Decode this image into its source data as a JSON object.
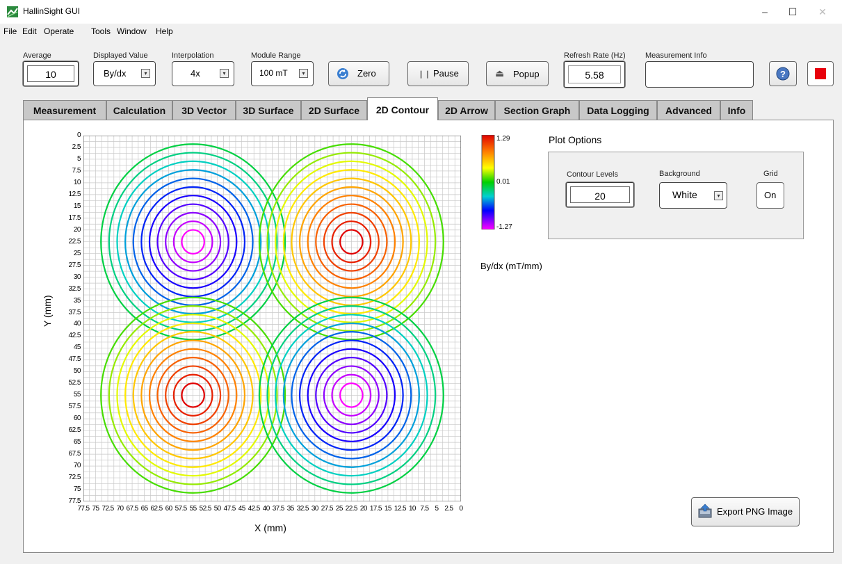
{
  "window": {
    "title": "HallinSight GUI",
    "minimize": "–",
    "maximize": "☐",
    "close": "✕"
  },
  "menu": [
    "File",
    "Edit",
    "Operate",
    "Tools",
    "Window",
    "Help"
  ],
  "toolbar": {
    "average": {
      "label": "Average",
      "value": "10"
    },
    "displayed_value": {
      "label": "Displayed Value",
      "value": "By/dx"
    },
    "interpolation": {
      "label": "Interpolation",
      "value": "4x"
    },
    "module_range": {
      "label": "Module Range",
      "value": "100 mT"
    },
    "zero_label": "Zero",
    "pause_label": "Pause",
    "popup_label": "Popup",
    "refresh_rate": {
      "label": "Refresh Rate (Hz)",
      "value": "5.58"
    },
    "measurement_info": {
      "label": "Measurement Info",
      "value": ""
    },
    "help_icon": "question-icon",
    "stop_color": "#e8000b"
  },
  "tabs": [
    "Measurement",
    "Calculation",
    "3D Vector",
    "3D Surface",
    "2D Surface",
    "2D Contour",
    "2D Arrow",
    "Section Graph",
    "Data Logging",
    "Advanced",
    "Info"
  ],
  "active_tab": "2D Contour",
  "plot": {
    "xlabel": "X (mm)",
    "ylabel": "Y (mm)",
    "y_ticks": [
      "0",
      "2.5",
      "5",
      "7.5",
      "10",
      "12.5",
      "15",
      "17.5",
      "20",
      "22.5",
      "25",
      "27.5",
      "30",
      "32.5",
      "35",
      "37.5",
      "40",
      "42.5",
      "45",
      "47.5",
      "50",
      "52.5",
      "55",
      "57.5",
      "60",
      "62.5",
      "65",
      "67.5",
      "70",
      "72.5",
      "75",
      "77.5"
    ],
    "x_ticks": [
      "77.5",
      "75",
      "72.5",
      "70",
      "67.5",
      "65",
      "62.5",
      "60",
      "57.5",
      "55",
      "52.5",
      "50",
      "47.5",
      "45",
      "42.5",
      "40",
      "37.5",
      "35",
      "32.5",
      "30",
      "27.5",
      "25",
      "22.5",
      "20",
      "17.5",
      "15",
      "12.5",
      "10",
      "7.5",
      "5",
      "2.5",
      "0"
    ],
    "colorbar": {
      "max": "1.29",
      "mid": "0.01",
      "min": "-1.27",
      "unit_label": "By/dx (mT/mm)"
    }
  },
  "chart_data": {
    "type": "heatmap",
    "title": "",
    "xlabel": "X (mm)",
    "ylabel": "Y (mm)",
    "xlim": [
      77.5,
      0
    ],
    "ylim": [
      0,
      77.5
    ],
    "contour_levels": 20,
    "grid": true,
    "colorbar_range": [
      -1.27,
      1.29
    ],
    "extrema": [
      {
        "x": 55,
        "y": 22.5,
        "value": -1.27
      },
      {
        "x": 22.5,
        "y": 22.5,
        "value": 1.29
      },
      {
        "x": 55,
        "y": 55,
        "value": 1.29
      },
      {
        "x": 22.5,
        "y": 55,
        "value": -1.27
      }
    ]
  },
  "plot_options": {
    "title": "Plot Options",
    "contour_levels": {
      "label": "Contour Levels",
      "value": "20"
    },
    "background": {
      "label": "Background",
      "value": "White"
    },
    "grid": {
      "label": "Grid",
      "value": "On"
    }
  },
  "export_label": "Export PNG Image"
}
